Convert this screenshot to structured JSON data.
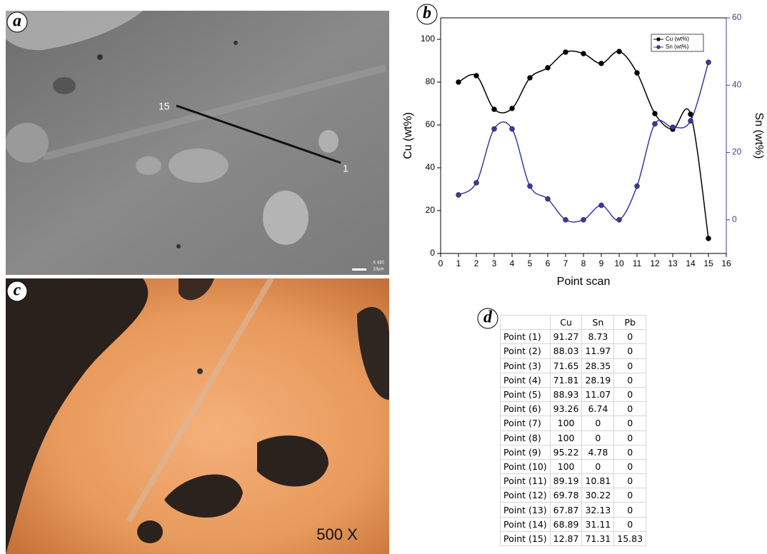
{
  "panel_labels": [
    "a",
    "b",
    "c",
    "d"
  ],
  "image_a": {
    "scan_labels": [
      "15",
      "1"
    ],
    "scale": [
      "X 430",
      "10μm"
    ]
  },
  "image_c": {
    "magnification": "500 X"
  },
  "chart_data": {
    "type": "line",
    "x": [
      1,
      2,
      3,
      4,
      5,
      6,
      7,
      8,
      9,
      10,
      11,
      12,
      13,
      14,
      15
    ],
    "series": [
      {
        "name": "Cu (wt%)",
        "color": "#000000",
        "values": [
          80,
          83,
          67.3,
          67.7,
          82,
          86.7,
          94,
          93.3,
          88.7,
          94.3,
          84.3,
          65.3,
          58,
          65,
          7
        ]
      },
      {
        "name": "Sn (wt%)",
        "color": "#3a3aa0",
        "axis": "y2",
        "values": [
          7.4,
          11,
          27,
          27,
          10,
          6.2,
          0,
          0,
          4.3,
          0,
          10,
          28.5,
          27.5,
          29.4,
          46.8
        ]
      }
    ],
    "x_label": "Point scan",
    "y_label": "Cu (wt%)",
    "y2_label": "Sn (wt%)",
    "xlim": [
      0,
      16
    ],
    "xticks": [
      0,
      1,
      2,
      3,
      4,
      5,
      6,
      7,
      8,
      9,
      10,
      11,
      12,
      13,
      14,
      15,
      16
    ],
    "ylim": [
      0,
      110
    ],
    "yticks": [
      0,
      20,
      40,
      60,
      80,
      100
    ],
    "y2lim": [
      -10,
      60
    ],
    "y2ticks": [
      0,
      20,
      40,
      60
    ],
    "y2_color": "#4b3c8c",
    "legend": "upper-right",
    "grid": false
  },
  "table": {
    "header": [
      "Cu",
      "Sn",
      "Pb"
    ],
    "rows": [
      [
        "Point (1)",
        91.27,
        8.73,
        0
      ],
      [
        "Point (2)",
        88.03,
        11.97,
        0
      ],
      [
        "Point (3)",
        71.65,
        28.35,
        0
      ],
      [
        "Point (4)",
        71.81,
        28.19,
        0
      ],
      [
        "Point (5)",
        88.93,
        11.07,
        0
      ],
      [
        "Point (6)",
        93.26,
        6.74,
        0
      ],
      [
        "Point (7)",
        100,
        0,
        0
      ],
      [
        "Point (8)",
        100,
        0,
        0
      ],
      [
        "Point (9)",
        95.22,
        4.78,
        0
      ],
      [
        "Point (10)",
        100,
        0,
        0
      ],
      [
        "Point (11)",
        89.19,
        10.81,
        0
      ],
      [
        "Point (12)",
        69.78,
        30.22,
        0
      ],
      [
        "Point (13)",
        67.87,
        32.13,
        0
      ],
      [
        "Point (14)",
        68.89,
        31.11,
        0
      ],
      [
        "Point (15)",
        12.87,
        71.31,
        15.83
      ]
    ]
  }
}
